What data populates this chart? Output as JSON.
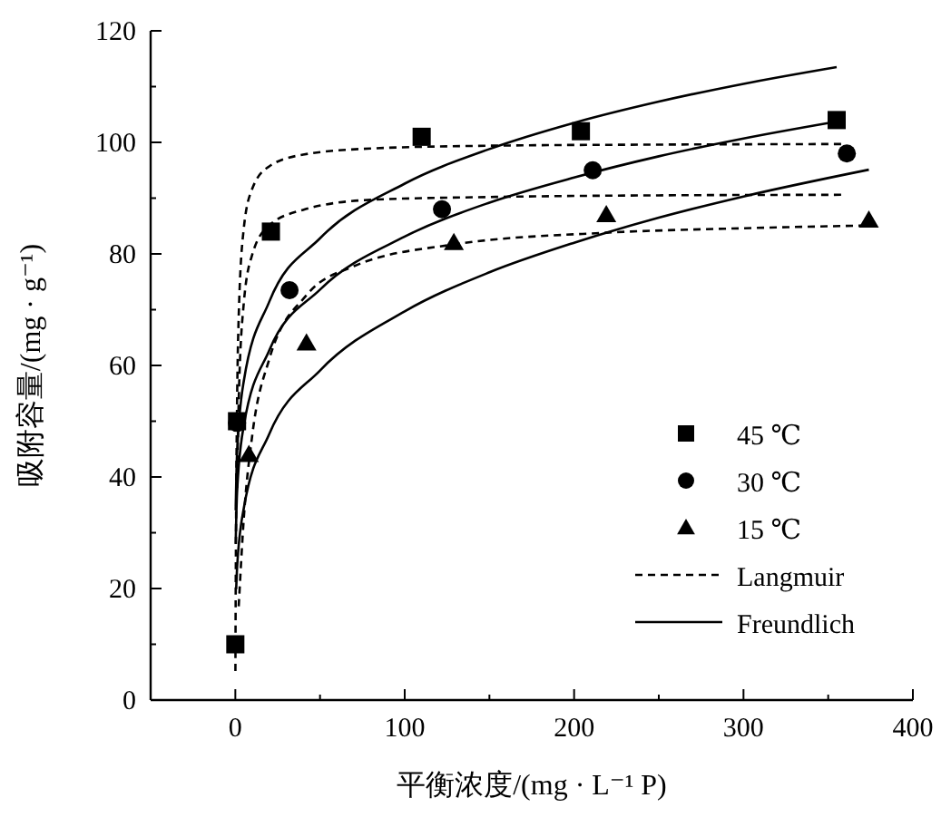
{
  "chart_data": {
    "type": "scatter",
    "xlabel": "平衡浓度/(mg · L⁻¹ P)",
    "ylabel": "吸附容量/(mg · g⁻¹)",
    "xlim": [
      -50,
      400
    ],
    "xticks": [
      0,
      {
        "value": 50,
        "label": null
      },
      100,
      {
        "value": 150,
        "label": null
      },
      200,
      {
        "value": 250,
        "label": null
      },
      300,
      {
        "value": 350,
        "label": null
      },
      400
    ],
    "ylim": [
      0,
      120
    ],
    "yticks": [
      0,
      {
        "value": 10,
        "label": null
      },
      20,
      {
        "value": 30,
        "label": null
      },
      40,
      {
        "value": 50,
        "label": null
      },
      60,
      {
        "value": 70,
        "label": null
      },
      80,
      {
        "value": 90,
        "label": null
      },
      100,
      {
        "value": 110,
        "label": null
      },
      120
    ],
    "grid": false,
    "legend": "bottom right",
    "series": [
      {
        "name": "45 ℃",
        "marker": "square",
        "color": "#000000",
        "x": [
          0,
          1,
          21,
          110,
          204,
          355
        ],
        "values": [
          10,
          50,
          84,
          101,
          102,
          104
        ]
      },
      {
        "name": "30 ℃",
        "marker": "circle",
        "color": "#000000",
        "x": [
          1,
          32,
          122,
          211,
          361
        ],
        "values": [
          49.7,
          73.5,
          88,
          95,
          98
        ]
      },
      {
        "name": "15 ℃",
        "marker": "triangle",
        "color": "#000000",
        "x": [
          8,
          42,
          129,
          219,
          374
        ],
        "values": [
          44,
          64,
          82,
          87,
          86
        ]
      },
      {
        "name": "Langmuir",
        "type": "line",
        "line_style": "dashed",
        "marker": "none",
        "color": "#000000",
        "x": [
          0.05,
          0.1,
          0.5,
          1,
          2,
          5,
          10,
          20,
          40,
          80,
          150,
          250,
          360
        ],
        "values": [
          5.2,
          9.9,
          35.5,
          52.4,
          68.8,
          84.6,
          91.7,
          95.7,
          97.8,
          98.9,
          99.4,
          99.6,
          99.7
        ]
      },
      {
        "type": "line",
        "line_style": "dashed",
        "marker": "none",
        "color": "#000000",
        "x": [
          1,
          2,
          5,
          10,
          20,
          40,
          80,
          150,
          250,
          360
        ],
        "values": [
          38,
          53.7,
          71.2,
          79.9,
          85.1,
          87.9,
          89.7,
          90.2,
          90.5,
          90.6
        ]
      },
      {
        "type": "line",
        "line_style": "dashed",
        "marker": "none",
        "color": "#000000",
        "x": [
          2,
          5,
          10,
          20,
          42,
          70,
          129,
          219,
          300,
          374
        ],
        "values": [
          16.8,
          32.6,
          47.5,
          61.1,
          72.6,
          77.8,
          81.7,
          83.8,
          84.6,
          85.1
        ]
      },
      {
        "name": "Freundlich",
        "type": "line",
        "line_style": "solid",
        "marker": "none",
        "color": "#000000",
        "x": [
          0.2,
          1,
          5,
          20,
          50,
          100,
          150,
          200,
          250,
          300,
          355
        ],
        "values": [
          34,
          44.1,
          57.2,
          71.4,
          82.8,
          92.6,
          98.8,
          103.5,
          107.3,
          110.5,
          113.5
        ]
      },
      {
        "type": "line",
        "line_style": "solid",
        "marker": "none",
        "color": "#000000",
        "x": [
          0.2,
          1,
          5,
          20,
          50,
          100,
          150,
          200,
          250,
          300,
          360
        ],
        "values": [
          28,
          37.1,
          49.2,
          62.7,
          73.6,
          83.1,
          89.2,
          93.7,
          97.5,
          100.7,
          104
        ]
      },
      {
        "type": "line",
        "line_style": "solid",
        "marker": "none",
        "color": "#000000",
        "x": [
          0.5,
          1,
          5,
          20,
          50,
          100,
          150,
          200,
          250,
          300,
          374
        ],
        "values": [
          19.9,
          23.5,
          34.4,
          47.7,
          59.1,
          69.7,
          76.7,
          82,
          86.5,
          90.3,
          95.1
        ]
      }
    ]
  }
}
